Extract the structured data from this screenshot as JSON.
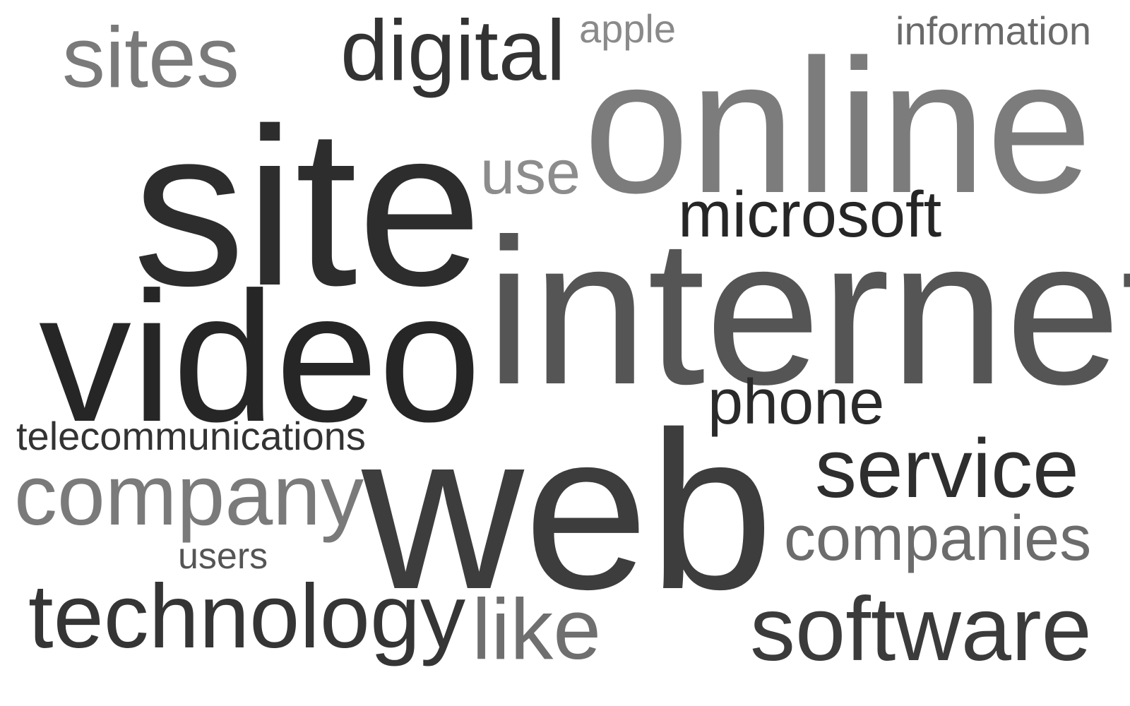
{
  "word_cloud": {
    "background": "#ffffff",
    "words": [
      {
        "id": "sites",
        "text": "sites",
        "color": "#7a7a7a"
      },
      {
        "id": "digital",
        "text": "digital",
        "color": "#333333"
      },
      {
        "id": "apple",
        "text": "apple",
        "color": "#8a8a8a"
      },
      {
        "id": "information",
        "text": "information",
        "color": "#6a6a6a"
      },
      {
        "id": "online",
        "text": "online",
        "color": "#7c7c7c"
      },
      {
        "id": "site",
        "text": "site",
        "color": "#2d2d2d"
      },
      {
        "id": "use",
        "text": "use",
        "color": "#8c8c8c"
      },
      {
        "id": "microsoft",
        "text": "microsoft",
        "color": "#262626"
      },
      {
        "id": "internet",
        "text": "internet",
        "color": "#555555"
      },
      {
        "id": "video",
        "text": "video",
        "color": "#262626"
      },
      {
        "id": "phone",
        "text": "phone",
        "color": "#2a2a2a"
      },
      {
        "id": "telecommunications",
        "text": "telecommunications",
        "color": "#333333"
      },
      {
        "id": "web",
        "text": "web",
        "color": "#3d3d3d"
      },
      {
        "id": "service",
        "text": "service",
        "color": "#2e2e2e"
      },
      {
        "id": "company",
        "text": "company",
        "color": "#7a7a7a"
      },
      {
        "id": "companies",
        "text": "companies",
        "color": "#6c6c6c"
      },
      {
        "id": "users",
        "text": "users",
        "color": "#555555"
      },
      {
        "id": "technology",
        "text": "technology",
        "color": "#353535"
      },
      {
        "id": "like",
        "text": "like",
        "color": "#6f6f6f"
      },
      {
        "id": "software",
        "text": "software",
        "color": "#3b3b3b"
      }
    ]
  }
}
